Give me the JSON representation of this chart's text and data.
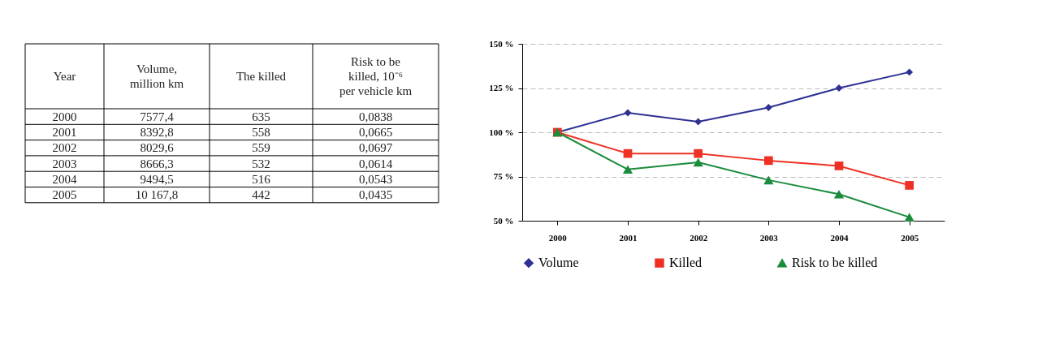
{
  "chart_data": {
    "type": "line",
    "categories": [
      "2000",
      "2001",
      "2002",
      "2003",
      "2004",
      "2005"
    ],
    "series": [
      {
        "name": "Volume",
        "color": "#2e3192",
        "marker": "diamond",
        "values": [
          100,
          111,
          106,
          114,
          125,
          134
        ]
      },
      {
        "name": "Killed",
        "color": "#ee3124",
        "marker": "square",
        "values": [
          100,
          88,
          88,
          84,
          81,
          70
        ]
      },
      {
        "name": "Risk to be killed",
        "color": "#1a8c3c",
        "marker": "triangle",
        "values": [
          100,
          79,
          83,
          73,
          65,
          52
        ]
      }
    ],
    "ylim": [
      50,
      150
    ],
    "yticks": [
      {
        "value": 50,
        "label": "50 %"
      },
      {
        "value": 75,
        "label": "75 %"
      },
      {
        "value": 100,
        "label": "100 %"
      },
      {
        "value": 125,
        "label": "125 %"
      },
      {
        "value": 150,
        "label": "150 %"
      }
    ],
    "grid": "y",
    "legend": "bottom",
    "line_style": "solid",
    "annotations": [
      "Year",
      "Volume, million km",
      "The killed",
      "Risk to be killed, 10⁻⁶ per vehicle km",
      "7577,4",
      "635",
      "0,0838",
      "8392,8",
      "558",
      "0,0665",
      "8029,6",
      "559",
      "0,0697",
      "8666,3",
      "532",
      "0,0614",
      "9494,5",
      "516",
      "0,0543",
      "10 167,8",
      "442",
      "0,0435"
    ]
  }
}
